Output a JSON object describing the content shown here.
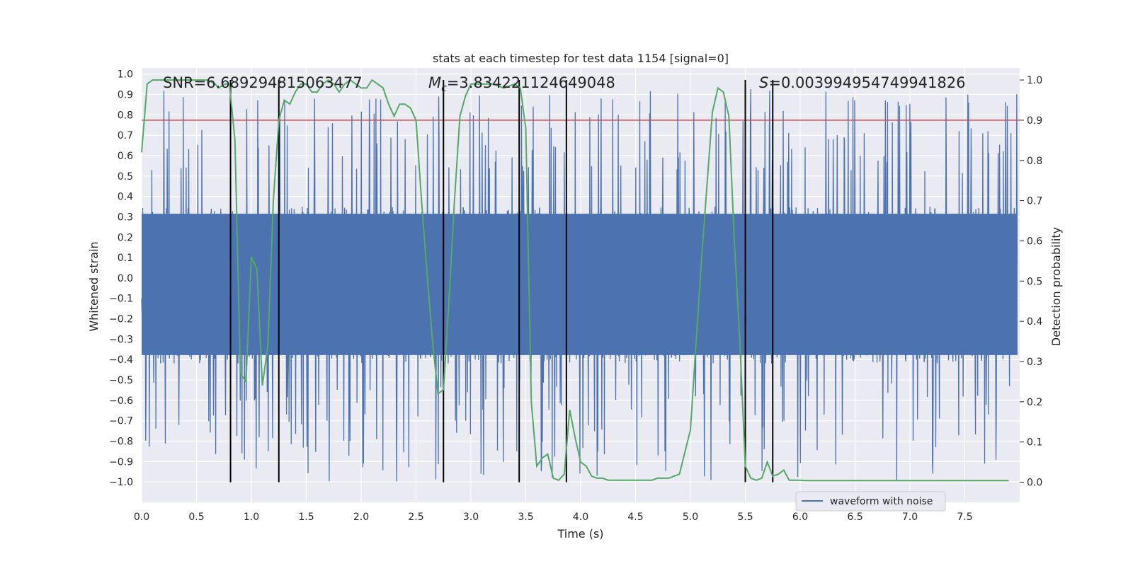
{
  "chart_data": {
    "type": "line",
    "title": "stats at each timestep for test data 1154 [signal=0]",
    "xlabel": "Time (s)",
    "ylabel": "Whitened strain",
    "y2label": "Detection probability",
    "xlim": [
      0.0,
      8.0
    ],
    "ylim": [
      -1.1,
      1.03
    ],
    "y2lim": [
      -0.05,
      1.03
    ],
    "xticks": [
      0.0,
      0.5,
      1.0,
      1.5,
      2.0,
      2.5,
      3.0,
      3.5,
      4.0,
      4.5,
      5.0,
      5.5,
      6.0,
      6.5,
      7.0,
      7.5
    ],
    "yticks": [
      -1.0,
      -0.9,
      -0.8,
      -0.7,
      -0.6,
      -0.5,
      -0.4,
      -0.3,
      -0.2,
      -0.1,
      0.0,
      0.1,
      0.2,
      0.3,
      0.4,
      0.5,
      0.6,
      0.7,
      0.8,
      0.9,
      1.0
    ],
    "y2ticks": [
      0.0,
      0.1,
      0.2,
      0.3,
      0.4,
      0.5,
      0.6,
      0.7,
      0.8,
      0.9,
      1.0
    ],
    "grid": true,
    "legend": {
      "placement": "lower-right",
      "entries": [
        "waveform with noise"
      ]
    },
    "annotations": {
      "snr": "SNR=6.689294815063477",
      "mc_symbol": "M",
      "mc_sub": "c",
      "mc_value": "=3.834221124649048",
      "s_symbol": "S",
      "s_value": "=0.003994954749941826"
    },
    "series": [
      {
        "name": "waveform with noise",
        "color": "#4c72b0",
        "axis": "left",
        "sampling": "dense noise, 0 to 8 s",
        "envelope_typical": [
          -0.42,
          0.35
        ],
        "envelope_extreme": [
          -1.0,
          0.93
        ]
      },
      {
        "axis": "right",
        "color": "#55a868",
        "x": [
          0.0,
          0.05,
          0.1,
          0.2,
          0.3,
          0.4,
          0.5,
          0.6,
          0.67,
          0.7,
          0.76,
          0.8,
          0.85,
          0.9,
          0.95,
          1.0,
          1.05,
          1.1,
          1.15,
          1.2,
          1.25,
          1.3,
          1.35,
          1.4,
          1.45,
          1.5,
          1.55,
          1.6,
          1.65,
          1.7,
          1.75,
          1.8,
          1.85,
          1.9,
          1.95,
          2.0,
          2.05,
          2.1,
          2.15,
          2.2,
          2.25,
          2.3,
          2.35,
          2.4,
          2.45,
          2.5,
          2.55,
          2.6,
          2.65,
          2.7,
          2.75,
          2.8,
          2.85,
          2.9,
          2.95,
          3.0,
          3.1,
          3.2,
          3.3,
          3.4,
          3.45,
          3.5,
          3.55,
          3.6,
          3.65,
          3.7,
          3.75,
          3.8,
          3.85,
          3.9,
          3.95,
          4.0,
          4.05,
          4.1,
          4.15,
          4.2,
          4.25,
          4.3,
          4.35,
          4.4,
          4.45,
          4.5,
          4.55,
          4.6,
          4.65,
          4.7,
          4.8,
          4.9,
          5.0,
          5.1,
          5.2,
          5.25,
          5.3,
          5.35,
          5.4,
          5.45,
          5.5,
          5.55,
          5.6,
          5.65,
          5.7,
          5.75,
          5.8,
          5.85,
          5.9,
          5.95,
          6.0,
          6.05,
          6.1,
          6.15,
          6.2,
          6.25,
          6.3,
          6.35,
          6.4,
          6.45,
          6.5,
          6.6,
          6.7,
          6.8,
          6.9,
          7.0,
          7.2,
          7.4,
          7.6,
          7.8,
          7.9
        ],
        "values": [
          0.82,
          0.99,
          1.0,
          1.0,
          1.0,
          1.0,
          1.0,
          1.0,
          0.99,
          0.98,
          0.99,
          0.99,
          0.85,
          0.27,
          0.25,
          0.56,
          0.53,
          0.24,
          0.34,
          0.7,
          0.9,
          0.95,
          0.94,
          0.97,
          0.99,
          0.99,
          0.97,
          0.97,
          0.99,
          1.0,
          0.99,
          0.97,
          0.99,
          1.0,
          0.99,
          0.98,
          0.98,
          1.0,
          0.99,
          0.98,
          0.94,
          0.91,
          0.94,
          0.94,
          0.93,
          0.9,
          0.7,
          0.52,
          0.35,
          0.22,
          0.23,
          0.45,
          0.7,
          0.91,
          0.96,
          0.99,
          0.99,
          0.99,
          0.98,
          0.99,
          0.98,
          0.88,
          0.2,
          0.04,
          0.06,
          0.07,
          0.01,
          0.005,
          0.02,
          0.18,
          0.11,
          0.05,
          0.04,
          0.015,
          0.01,
          0.01,
          0.005,
          0.005,
          0.005,
          0.005,
          0.005,
          0.005,
          0.005,
          0.005,
          0.005,
          0.01,
          0.01,
          0.02,
          0.13,
          0.55,
          0.92,
          0.98,
          0.97,
          0.91,
          0.6,
          0.35,
          0.04,
          0.01,
          0.005,
          0.01,
          0.05,
          0.015,
          0.02,
          0.03,
          0.005,
          0.005,
          0.005,
          0.004,
          0.004,
          0.004,
          0.004,
          0.004,
          0.004,
          0.004,
          0.004,
          0.004,
          0.004,
          0.004,
          0.004,
          0.004,
          0.004,
          0.004,
          0.004,
          0.004,
          0.004,
          0.004,
          0.004
        ]
      },
      {
        "axis": "right",
        "color": "#c44e52",
        "type": "hline",
        "value": 0.9
      }
    ],
    "vlines": {
      "color": "#000000",
      "x": [
        0.81,
        1.25,
        2.75,
        3.44,
        3.87,
        5.5,
        5.75
      ],
      "y2_range": [
        0.0,
        1.0
      ]
    }
  }
}
